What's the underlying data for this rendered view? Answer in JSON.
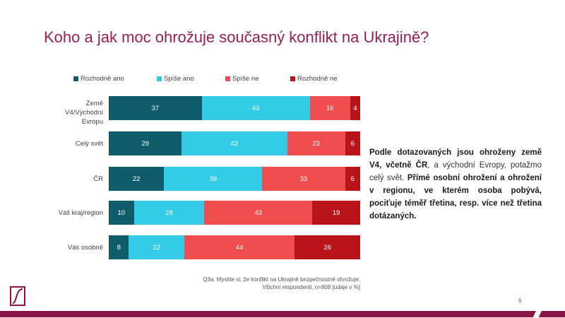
{
  "title": "Koho a jak moc ohrožuje současný konflikt na Ukrajině?",
  "chart_data": {
    "type": "bar",
    "orientation": "horizontal-stacked-100",
    "categories": [
      "Země V4/Východní Evropu",
      "Celý svět",
      "ČR",
      "Váš kraj/region",
      "Vás osobně"
    ],
    "series": [
      {
        "name": "Rozhodně ano",
        "color": "#0f5c6b",
        "values": [
          37,
          29,
          22,
          10,
          8
        ]
      },
      {
        "name": "Spíše ano",
        "color": "#33cbe8",
        "values": [
          43,
          42,
          39,
          28,
          22
        ]
      },
      {
        "name": "Spíše ne",
        "color": "#f04e4e",
        "values": [
          16,
          23,
          33,
          43,
          44
        ]
      },
      {
        "name": "Rozhodně ne",
        "color": "#b8141a",
        "values": [
          4,
          6,
          6,
          19,
          26
        ]
      }
    ],
    "legend": "top",
    "grid": false
  },
  "note": {
    "p1": "Podle dotazovaných jsou ohroženy země V4, včetně ČR",
    "p2": ", a východní Evropy, potažmo celý svět. ",
    "p3": "Přímé osobní ohrožení a ohrožení v regionu, ve kterém osoba pobývá, pociťuje téměř třetina, resp. více než třetina dotázaných."
  },
  "source": {
    "line1": "Q3a. Myslíte si, že konflikt na Ukrajině bezpečnostně ohrožuje:",
    "line2": "Všichni respondenti, n=808 [údaje v %]"
  },
  "page_number": "6"
}
